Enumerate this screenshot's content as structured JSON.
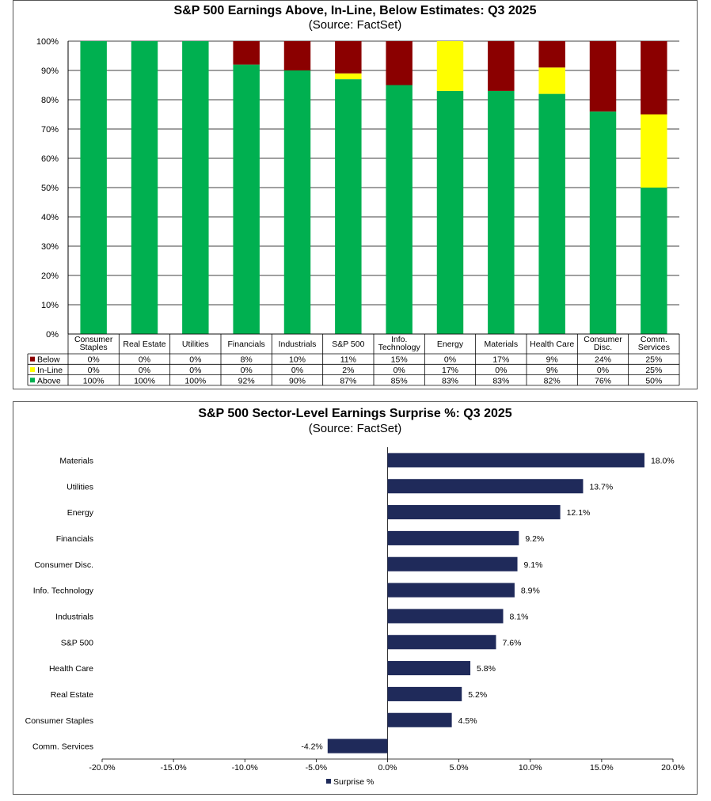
{
  "chart_data": [
    {
      "type": "bar",
      "stacked": true,
      "title": "S&P 500 Earnings Above, In-Line, Below Estimates: Q3 2025",
      "subtitle": "(Source: FactSet)",
      "categories": [
        [
          "Consumer",
          "Staples"
        ],
        [
          "Real Estate"
        ],
        [
          "Utilities"
        ],
        [
          "Financials"
        ],
        [
          "Industrials"
        ],
        [
          "S&P 500"
        ],
        [
          "Info.",
          "Technology"
        ],
        [
          "Energy"
        ],
        [
          "Materials"
        ],
        [
          "Health Care"
        ],
        [
          "Consumer",
          "Disc."
        ],
        [
          "Comm.",
          "Services"
        ]
      ],
      "yticks": [
        "0%",
        "10%",
        "20%",
        "30%",
        "40%",
        "50%",
        "60%",
        "70%",
        "80%",
        "90%",
        "100%"
      ],
      "ylim": [
        0,
        100
      ],
      "series": [
        {
          "name": "Above",
          "color": "#00B050",
          "values": [
            100,
            100,
            100,
            92,
            90,
            87,
            85,
            83,
            83,
            82,
            76,
            50
          ],
          "labels": [
            "100%",
            "100%",
            "100%",
            "92%",
            "90%",
            "87%",
            "85%",
            "83%",
            "83%",
            "82%",
            "76%",
            "50%"
          ]
        },
        {
          "name": "In-Line",
          "color": "#FFFF00",
          "values": [
            0,
            0,
            0,
            0,
            0,
            2,
            0,
            17,
            0,
            9,
            0,
            25
          ],
          "labels": [
            "0%",
            "0%",
            "0%",
            "0%",
            "0%",
            "2%",
            "0%",
            "17%",
            "0%",
            "9%",
            "0%",
            "25%"
          ]
        },
        {
          "name": "Below",
          "color": "#8B0000",
          "values": [
            0,
            0,
            0,
            8,
            10,
            11,
            15,
            0,
            17,
            9,
            24,
            25
          ],
          "labels": [
            "0%",
            "0%",
            "0%",
            "8%",
            "10%",
            "11%",
            "15%",
            "0%",
            "17%",
            "9%",
            "24%",
            "25%"
          ]
        }
      ],
      "table_row_order": [
        "Below",
        "In-Line",
        "Above"
      ],
      "grid": true,
      "legend": "data table"
    },
    {
      "type": "bar",
      "orientation": "horizontal",
      "title": "S&P 500 Sector-Level Earnings Surprise %: Q3 2025",
      "subtitle": "(Source: FactSet)",
      "categories": [
        "Materials",
        "Utilities",
        "Energy",
        "Financials",
        "Consumer Disc.",
        "Info. Technology",
        "Industrials",
        "S&P 500",
        "Health Care",
        "Real Estate",
        "Consumer Staples",
        "Comm. Services"
      ],
      "values": [
        18.0,
        13.7,
        12.1,
        9.2,
        9.1,
        8.9,
        8.1,
        7.6,
        5.8,
        5.2,
        4.5,
        -4.2
      ],
      "labels": [
        "18.0%",
        "13.7%",
        "12.1%",
        "9.2%",
        "9.1%",
        "8.9%",
        "8.1%",
        "7.6%",
        "5.8%",
        "5.2%",
        "4.5%",
        "-4.2%"
      ],
      "series_name": "Surprise %",
      "color": "#1F2A5A",
      "xlim": [
        -20,
        20
      ],
      "xticks": [
        "-20.0%",
        "-15.0%",
        "-10.0%",
        "-5.0%",
        "0.0%",
        "5.0%",
        "10.0%",
        "15.0%",
        "20.0%"
      ],
      "grid": false,
      "legend": "bottom-center"
    }
  ]
}
